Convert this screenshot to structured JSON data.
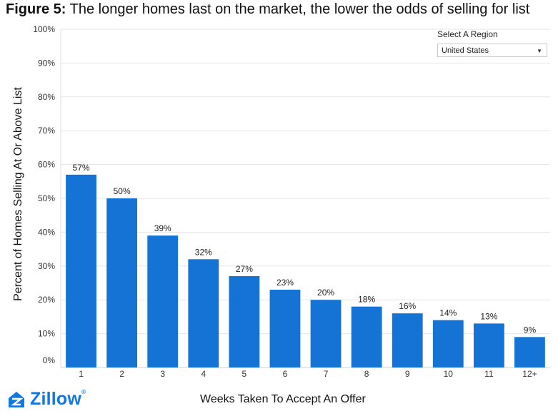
{
  "title": {
    "prefix": "Figure 5:",
    "text": "The longer homes last on the market, the lower the odds of selling for list"
  },
  "region_selector": {
    "label": "Select A Region",
    "value": "United States"
  },
  "logo": {
    "text": "Zillow",
    "mark": "zillow-house-icon"
  },
  "colors": {
    "bar": "#1473d4",
    "grid": "#e6e6e6",
    "brand": "#1277e1"
  },
  "chart_data": {
    "type": "bar",
    "title": "The longer homes last on the market, the lower the odds of selling for list",
    "xlabel": "Weeks Taken To Accept An Offer",
    "ylabel": "Percent of Homes Selling At Or Above List",
    "categories": [
      "1",
      "2",
      "3",
      "4",
      "5",
      "6",
      "7",
      "8",
      "9",
      "10",
      "11",
      "12+"
    ],
    "values": [
      57,
      50,
      39,
      32,
      27,
      23,
      20,
      18,
      16,
      14,
      13,
      9
    ],
    "data_labels": [
      "57%",
      "50%",
      "39%",
      "32%",
      "27%",
      "23%",
      "20%",
      "18%",
      "16%",
      "14%",
      "13%",
      "9%"
    ],
    "yticks": [
      "0%",
      "10%",
      "20%",
      "30%",
      "40%",
      "50%",
      "60%",
      "70%",
      "80%",
      "90%",
      "100%"
    ],
    "ylim": [
      0,
      100
    ],
    "grid": true,
    "legend": "none"
  }
}
